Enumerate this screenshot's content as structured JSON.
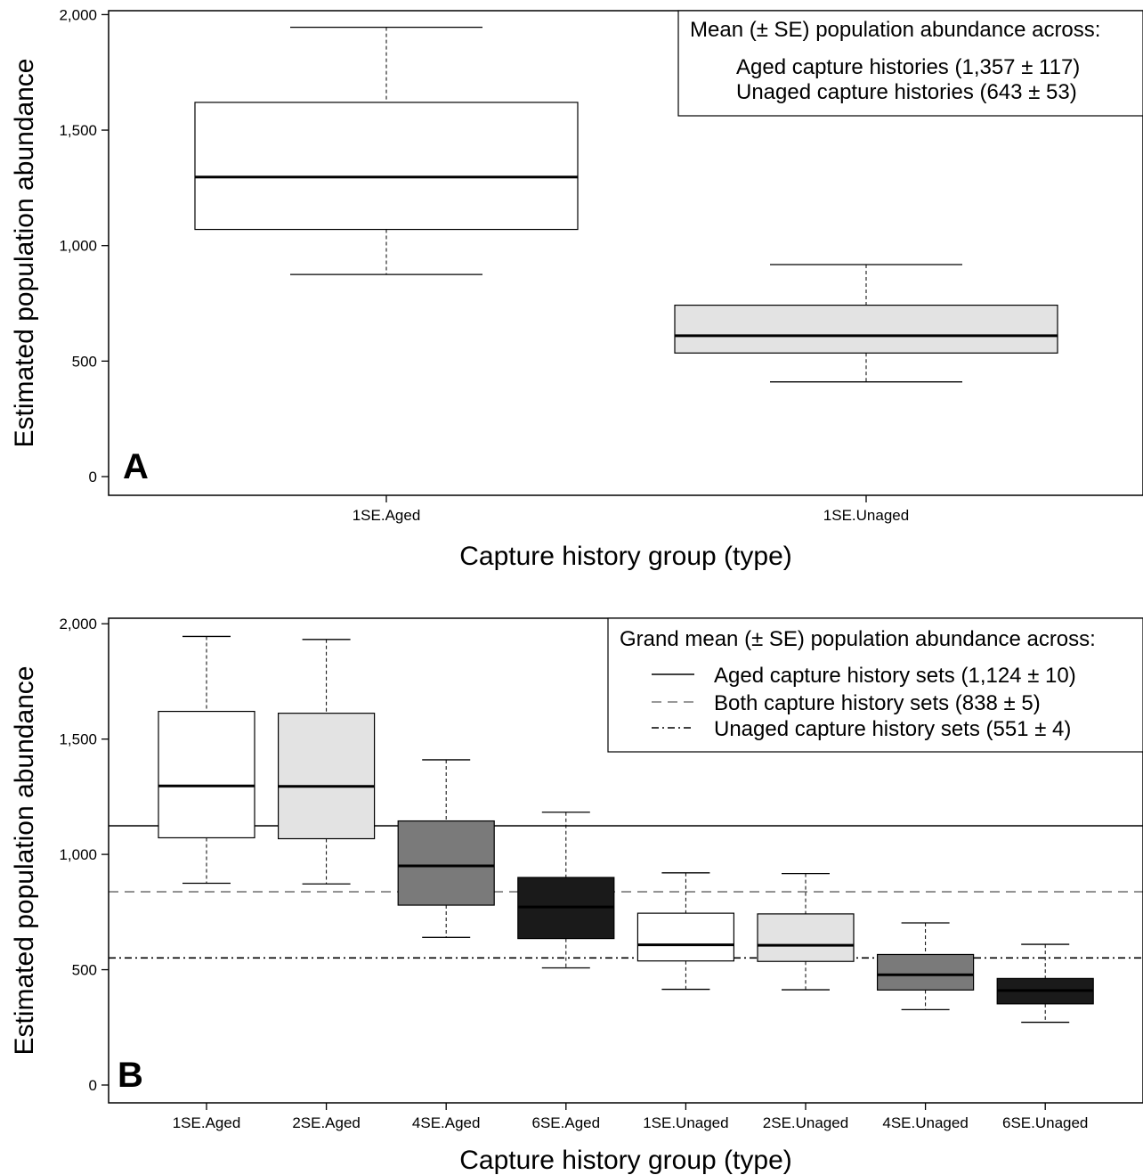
{
  "chart_data": [
    {
      "type": "box",
      "panel_label": "A",
      "xlabel": "Capture history group (type)",
      "ylabel": "Estimated population abundance",
      "ylim": [
        0,
        2000
      ],
      "yticks": [
        0,
        500,
        1000,
        1500,
        2000
      ],
      "ytick_labels": [
        "0",
        "500",
        "1,000",
        "1,500",
        "2,000"
      ],
      "grid": false,
      "legend_position": "top-right",
      "legend_title": "Mean (± SE) population abundance across:",
      "legend_items": [
        {
          "label": "Aged capture histories  (1,357 ± 117)"
        },
        {
          "label": "Unaged capture histories (643 ± 53)"
        }
      ],
      "categories": [
        "1SE.Aged",
        "1SE.Unaged"
      ],
      "boxes": [
        {
          "category": "1SE.Aged",
          "whisker_low": 875,
          "q1": 1070,
          "median": 1297,
          "q3": 1620,
          "whisker_high": 1945,
          "fill": "#ffffff"
        },
        {
          "category": "1SE.Unaged",
          "whisker_low": 410,
          "q1": 535,
          "median": 610,
          "q3": 742,
          "whisker_high": 918,
          "fill": "#e3e3e3"
        }
      ]
    },
    {
      "type": "box",
      "panel_label": "B",
      "xlabel": "Capture history group (type)",
      "ylabel": "Estimated population abundance",
      "ylim": [
        0,
        2000
      ],
      "yticks": [
        0,
        500,
        1000,
        1500,
        2000
      ],
      "ytick_labels": [
        "0",
        "500",
        "1,000",
        "1,500",
        "2,000"
      ],
      "grid": false,
      "legend_position": "top-right",
      "legend_title": "Grand mean (± SE) population abundance across:",
      "legend_items": [
        {
          "label": "Aged capture history sets (1,124 ± 10)",
          "line_style": "solid",
          "color": "#000000"
        },
        {
          "label": "Both capture history sets (838 ± 5)",
          "line_style": "dashed",
          "color": "#777777"
        },
        {
          "label": "Unaged capture history sets (551 ± 4)",
          "line_style": "dashdot",
          "color": "#000000"
        }
      ],
      "reference_lines": [
        {
          "y": 1124,
          "line_style": "solid",
          "color": "#000000"
        },
        {
          "y": 838,
          "line_style": "dashed",
          "color": "#777777"
        },
        {
          "y": 551,
          "line_style": "dashdot",
          "color": "#000000"
        }
      ],
      "categories": [
        "1SE.Aged",
        "2SE.Aged",
        "4SE.Aged",
        "6SE.Aged",
        "1SE.Unaged",
        "2SE.Unaged",
        "4SE.Unaged",
        "6SE.Unaged"
      ],
      "boxes": [
        {
          "category": "1SE.Aged",
          "whisker_low": 875,
          "q1": 1072,
          "median": 1297,
          "q3": 1620,
          "whisker_high": 1945,
          "fill": "#ffffff"
        },
        {
          "category": "2SE.Aged",
          "whisker_low": 872,
          "q1": 1068,
          "median": 1295,
          "q3": 1612,
          "whisker_high": 1932,
          "fill": "#e3e3e3"
        },
        {
          "category": "4SE.Aged",
          "whisker_low": 640,
          "q1": 780,
          "median": 950,
          "q3": 1145,
          "whisker_high": 1410,
          "fill": "#7a7a7a"
        },
        {
          "category": "6SE.Aged",
          "whisker_low": 508,
          "q1": 635,
          "median": 772,
          "q3": 900,
          "whisker_high": 1183,
          "fill": "#1a1a1a"
        },
        {
          "category": "1SE.Unaged",
          "whisker_low": 415,
          "q1": 538,
          "median": 608,
          "q3": 745,
          "whisker_high": 920,
          "fill": "#ffffff"
        },
        {
          "category": "2SE.Unaged",
          "whisker_low": 413,
          "q1": 536,
          "median": 606,
          "q3": 742,
          "whisker_high": 917,
          "fill": "#e3e3e3"
        },
        {
          "category": "4SE.Unaged",
          "whisker_low": 327,
          "q1": 412,
          "median": 478,
          "q3": 566,
          "whisker_high": 703,
          "fill": "#7a7a7a"
        },
        {
          "category": "6SE.Unaged",
          "whisker_low": 272,
          "q1": 352,
          "median": 410,
          "q3": 462,
          "whisker_high": 610,
          "fill": "#1a1a1a"
        }
      ]
    }
  ]
}
